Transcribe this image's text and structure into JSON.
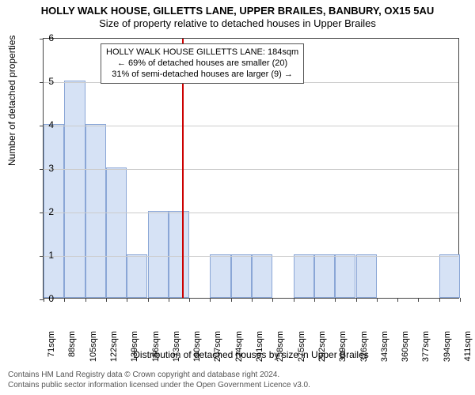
{
  "title_line1": "HOLLY WALK HOUSE, GILLETTS LANE, UPPER BRAILES, BANBURY, OX15 5AU",
  "title_line2": "Size of property relative to detached houses in Upper Brailes",
  "yaxis_label": "Number of detached properties",
  "xaxis_label": "Distribution of detached houses by size in Upper Brailes",
  "footer_line1": "Contains HM Land Registry data © Crown copyright and database right 2024.",
  "footer_line2": "Contains public sector information licensed under the Open Government Licence v3.0.",
  "annotation": {
    "line1": "HOLLY WALK HOUSE GILLETTS LANE: 184sqm",
    "line2": "← 69% of detached houses are smaller (20)",
    "line3": "31% of semi-detached houses are larger (9) →"
  },
  "chart": {
    "type": "histogram",
    "ylim": [
      0,
      6
    ],
    "ytick_step": 1,
    "background": "#ffffff",
    "grid_color": "#cccccc",
    "axis_color": "#444444",
    "bar_fill": "#d6e2f5",
    "bar_border": "#8aa6d6",
    "marker": {
      "x_value": 184,
      "color": "#cc0000"
    },
    "xticks": [
      71,
      88,
      105,
      122,
      139,
      156,
      173,
      190,
      207,
      224,
      241,
      258,
      275,
      292,
      309,
      326,
      343,
      360,
      377,
      394,
      411
    ],
    "xtick_suffix": "sqm",
    "bars": [
      {
        "x0": 71,
        "x1": 88,
        "count": 4
      },
      {
        "x0": 88,
        "x1": 105,
        "count": 5
      },
      {
        "x0": 105,
        "x1": 122,
        "count": 4
      },
      {
        "x0": 122,
        "x1": 139,
        "count": 3
      },
      {
        "x0": 139,
        "x1": 156,
        "count": 1
      },
      {
        "x0": 156,
        "x1": 173,
        "count": 2
      },
      {
        "x0": 173,
        "x1": 190,
        "count": 2
      },
      {
        "x0": 207,
        "x1": 224,
        "count": 1
      },
      {
        "x0": 224,
        "x1": 241,
        "count": 1
      },
      {
        "x0": 241,
        "x1": 258,
        "count": 1
      },
      {
        "x0": 275,
        "x1": 292,
        "count": 1
      },
      {
        "x0": 292,
        "x1": 309,
        "count": 1
      },
      {
        "x0": 309,
        "x1": 326,
        "count": 1
      },
      {
        "x0": 326,
        "x1": 343,
        "count": 1
      },
      {
        "x0": 394,
        "x1": 411,
        "count": 1
      }
    ]
  }
}
